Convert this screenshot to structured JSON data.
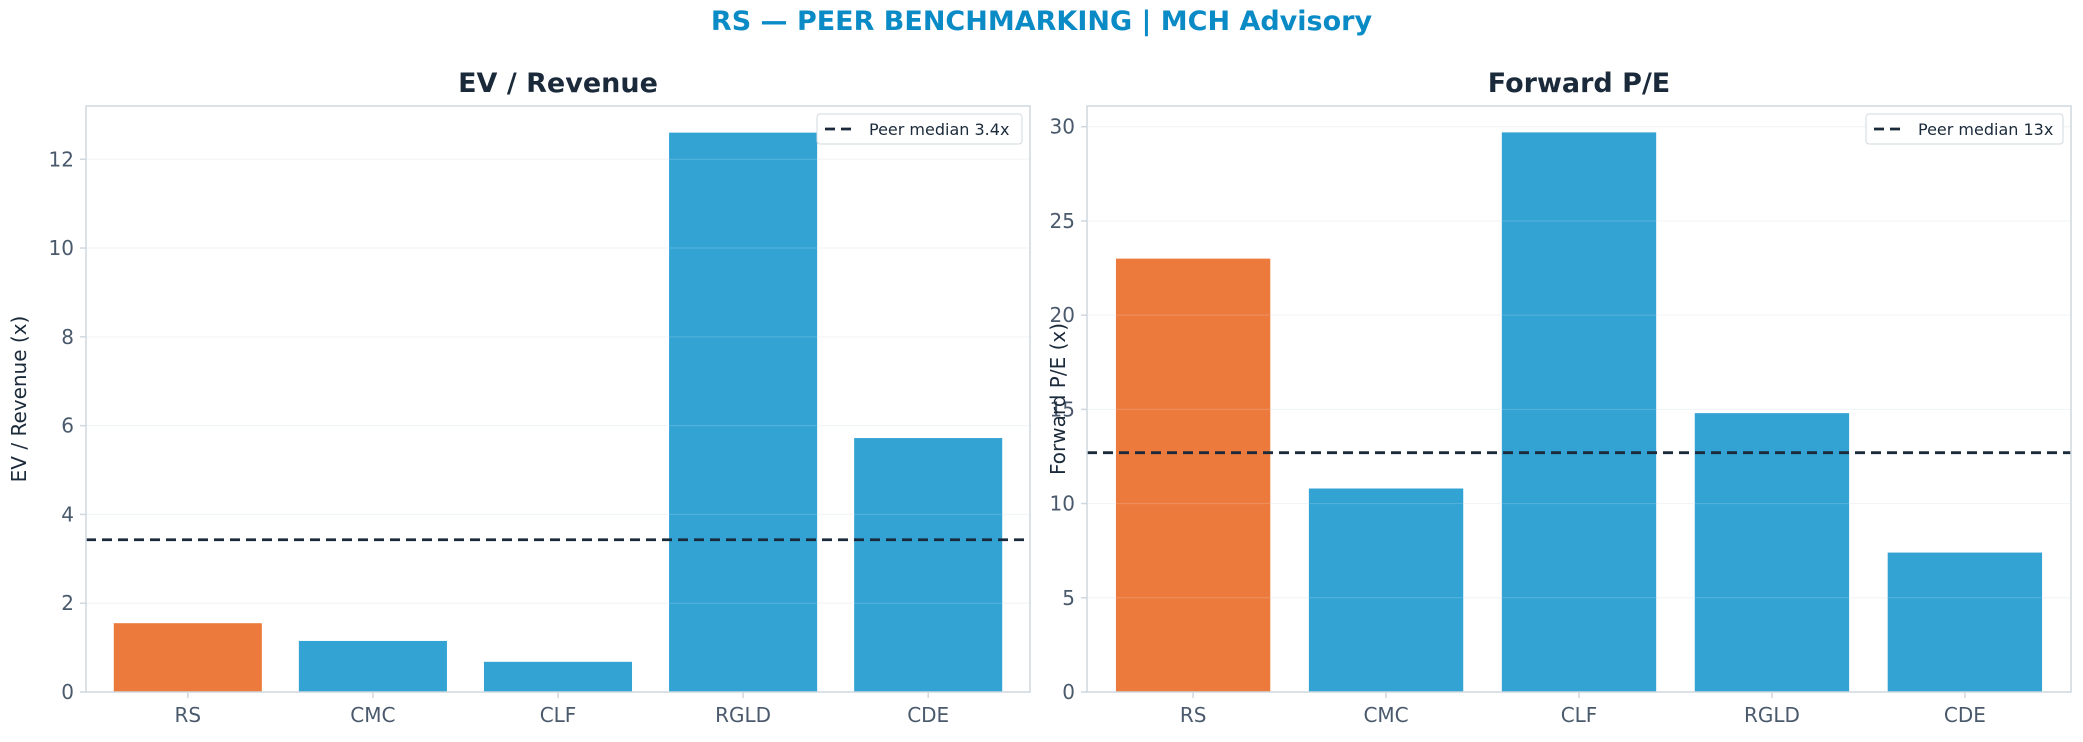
{
  "figure_title": "RS — PEER BENCHMARKING | MCH Advisory",
  "colors": {
    "title": "#0a8bc6",
    "highlight_bar": "#ec7a3d",
    "peer_bar": "#33a3d4",
    "median_line": "#1b2a3a",
    "axes": "#cfd8df",
    "grid": "#eef2f5"
  },
  "chart_data": [
    {
      "type": "bar",
      "title": "EV / Revenue",
      "ylabel": "EV / Revenue (x)",
      "xlabel": "",
      "categories": [
        "RS",
        "CMC",
        "CLF",
        "RGLD",
        "CDE"
      ],
      "values": [
        1.55,
        1.15,
        0.68,
        12.6,
        5.72
      ],
      "highlight": "RS",
      "ylim": [
        0,
        13.2
      ],
      "yticks": [
        0,
        2,
        4,
        6,
        8,
        10,
        12
      ],
      "ytick_labels": [
        "0",
        "2",
        "4",
        "6",
        "8",
        "10",
        "12"
      ],
      "reference_line": {
        "label": "Peer median 3.4x",
        "value": 3.43,
        "style": "dashed"
      },
      "legend_position": "top-right",
      "grid": true
    },
    {
      "type": "bar",
      "title": "Forward P/E",
      "ylabel": "Forward P/E (x)",
      "xlabel": "",
      "categories": [
        "RS",
        "CMC",
        "CLF",
        "RGLD",
        "CDE"
      ],
      "values": [
        23.0,
        10.8,
        29.7,
        14.8,
        7.4
      ],
      "highlight": "RS",
      "ylim": [
        0,
        31.1
      ],
      "yticks": [
        0,
        5,
        10,
        15,
        20,
        25,
        30
      ],
      "ytick_labels": [
        "0",
        "5",
        "10",
        "15",
        "20",
        "25",
        "30"
      ],
      "reference_line": {
        "label": "Peer median 13x",
        "value": 12.7,
        "style": "dashed"
      },
      "legend_position": "top-right",
      "grid": true
    }
  ]
}
